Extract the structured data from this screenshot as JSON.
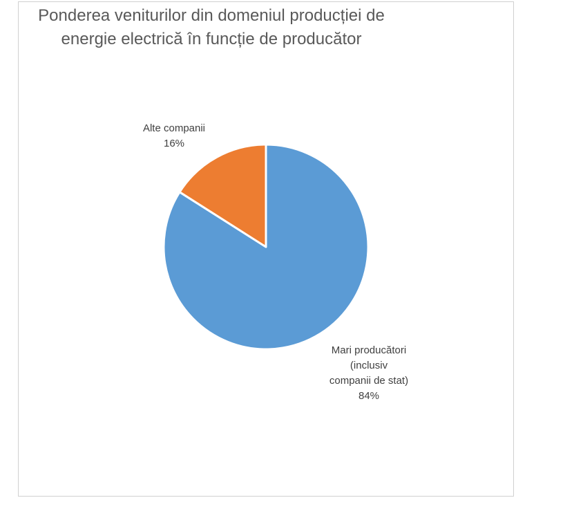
{
  "chart_data": {
    "type": "pie",
    "title_lines": [
      "Ponderea veniturilor din domeniul producției de",
      "energie electrică  în funcție de producător"
    ],
    "slices": [
      {
        "name": "Mari producători (inclusiv companii de stat)",
        "label_lines": [
          "Mari producători",
          "(inclusiv",
          "companii de stat)"
        ],
        "value": 84,
        "percent_label": "84%",
        "color": "#5B9BD5"
      },
      {
        "name": "Alte companii",
        "label_lines": [
          "Alte companii"
        ],
        "value": 16,
        "percent_label": "16%",
        "color": "#ED7D31"
      }
    ],
    "start_angle_deg": 0,
    "direction": "clockwise",
    "slice_border_color": "#ffffff",
    "legend": "none"
  }
}
